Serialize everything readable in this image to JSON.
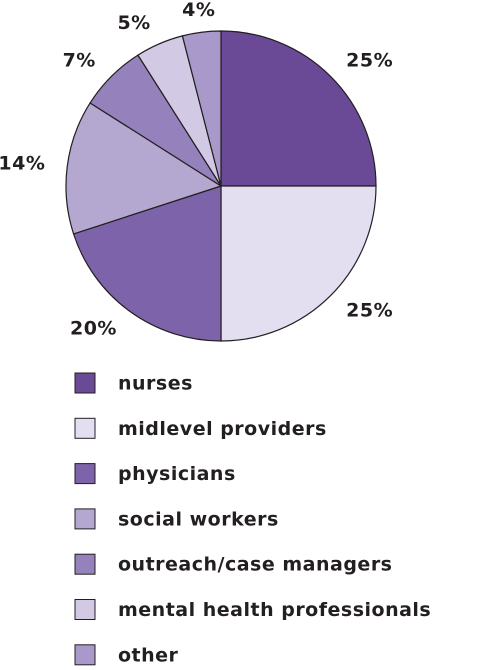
{
  "chart_data": {
    "type": "pie",
    "categories": [
      "nurses",
      "midlevel providers",
      "physicians",
      "social workers",
      "outreach/case managers",
      "mental health professionals",
      "other"
    ],
    "values": [
      25,
      25,
      20,
      14,
      7,
      5,
      4
    ],
    "value_labels": [
      "25%",
      "25%",
      "20%",
      "14%",
      "7%",
      "5%",
      "4%"
    ],
    "colors": [
      "#6a4a96",
      "#e3dff0",
      "#7d63a9",
      "#b4a8d1",
      "#9581bc",
      "#d2cae5",
      "#a899ca"
    ]
  }
}
